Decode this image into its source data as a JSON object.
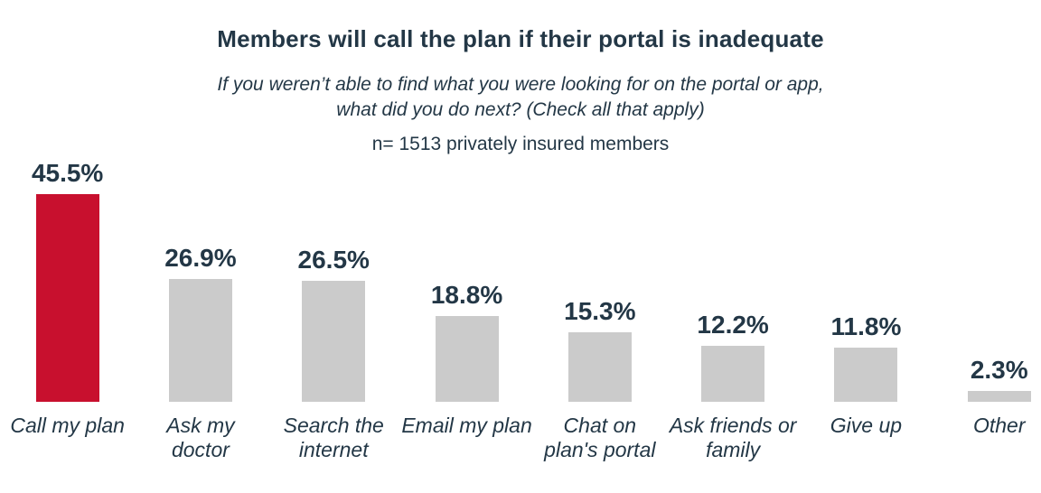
{
  "page": {
    "background": "#ffffff"
  },
  "header": {
    "title": "Members will call the plan if their portal is inadequate",
    "subtitle_line1": "If you weren’t able to find what you were looking for on the portal or app,",
    "subtitle_line2": "what did you do next? (Check all that apply)",
    "sample_note": "n= 1513 privately insured members"
  },
  "colors": {
    "highlight_bar": "#C8102E",
    "default_bar": "#CBCBCB",
    "text": "#233746"
  },
  "chart_data": {
    "type": "bar",
    "title": "Members will call the plan if their portal is inadequate",
    "subtitle": "If you weren’t able to find what you were looking for on the portal or app, what did you do next? (Check all that apply)",
    "note": "n= 1513 privately insured members",
    "categories": [
      "Call my plan",
      "Ask my doctor",
      "Search the internet",
      "Email my plan",
      "Chat on plan's portal",
      "Ask friends or family",
      "Give up",
      "Other"
    ],
    "values": [
      45.5,
      26.9,
      26.5,
      18.8,
      15.3,
      12.2,
      11.8,
      2.3
    ],
    "value_labels": [
      "45.5%",
      "26.9%",
      "26.5%",
      "18.8%",
      "15.3%",
      "12.2%",
      "11.8%",
      "2.3%"
    ],
    "unit": "%",
    "highlight_index": 0,
    "category_lines": [
      [
        "Call my plan"
      ],
      [
        "Ask my",
        "doctor"
      ],
      [
        "Search the",
        "internet"
      ],
      [
        "Email my plan"
      ],
      [
        "Chat on",
        "plan's portal"
      ],
      [
        "Ask friends or",
        "family"
      ],
      [
        "Give up"
      ],
      [
        "Other"
      ]
    ],
    "xlabel": "",
    "ylabel": "",
    "ylim": [
      0,
      50
    ],
    "grid": false,
    "value_labels_position": "above-bars",
    "legend": "none"
  }
}
